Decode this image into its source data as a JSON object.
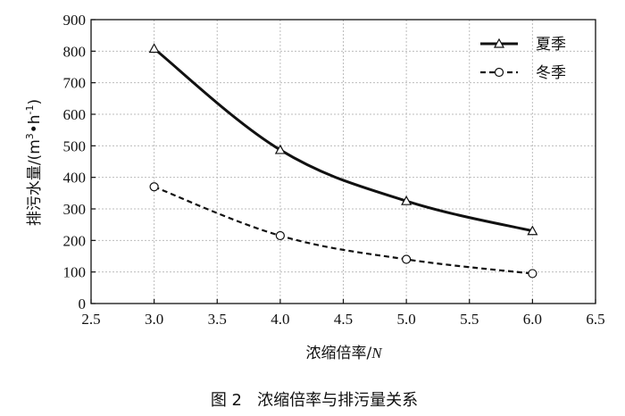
{
  "chart_data": {
    "type": "line",
    "x": [
      3.0,
      4.0,
      5.0,
      6.0
    ],
    "series": [
      {
        "name": "夏季",
        "values": [
          808,
          487,
          325,
          230
        ],
        "line": "solid",
        "marker": "triangle"
      },
      {
        "name": "冬季",
        "values": [
          370,
          215,
          140,
          95
        ],
        "line": "dashed",
        "marker": "circle"
      }
    ],
    "xlim": [
      2.5,
      6.5
    ],
    "ylim": [
      0,
      900
    ],
    "xticks": [
      "2.5",
      "3.0",
      "3.5",
      "4.0",
      "4.5",
      "5.0",
      "5.5",
      "6.0",
      "6.5"
    ],
    "yticks": [
      "0",
      "100",
      "200",
      "300",
      "400",
      "500",
      "600",
      "700",
      "800",
      "900"
    ],
    "xlabel_main": "浓缩倍率/",
    "xlabel_italic": "N",
    "ylabel_prefix": "排污水量/(m",
    "ylabel_sup1": "3",
    "ylabel_mid": "•h",
    "ylabel_sup2": "-1",
    "ylabel_suffix": ")",
    "grid": true,
    "legend_position": "top-right",
    "colors": {
      "line": "#111111",
      "grid": "#bdbdbd"
    }
  },
  "caption": "图 2   浓缩倍率与排污量关系"
}
